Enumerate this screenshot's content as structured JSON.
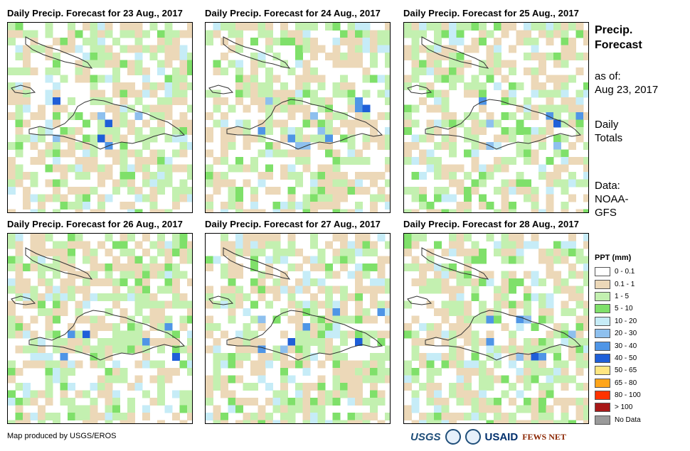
{
  "panels": [
    {
      "title": "Daily Precip. Forecast for 23 Aug., 2017",
      "seed": 11
    },
    {
      "title": "Daily Precip. Forecast for 24 Aug., 2017",
      "seed": 23
    },
    {
      "title": "Daily Precip. Forecast for 25 Aug., 2017",
      "seed": 37
    },
    {
      "title": "Daily Precip. Forecast for 26 Aug., 2017",
      "seed": 41
    },
    {
      "title": "Daily Precip. Forecast for 27 Aug., 2017",
      "seed": 53
    },
    {
      "title": "Daily Precip. Forecast for 28 Aug., 2017",
      "seed": 67
    }
  ],
  "sidebar": {
    "title_line1": "Precip.",
    "title_line2": "Forecast",
    "asof_label": "as of:",
    "asof_date": "Aug 23, 2017",
    "daily_line1": "Daily",
    "daily_line2": "Totals",
    "data_line1": "Data:",
    "data_line2": "NOAA-",
    "data_line3": "GFS"
  },
  "legend": {
    "title": "PPT (mm)",
    "items": [
      {
        "label": "0 - 0.1",
        "color": "#ffffff"
      },
      {
        "label": "0.1 - 1",
        "color": "#ecd8b8"
      },
      {
        "label": "1 - 5",
        "color": "#c3f0b0"
      },
      {
        "label": "5 - 10",
        "color": "#7fe06a"
      },
      {
        "label": "10 - 20",
        "color": "#c6ecf7"
      },
      {
        "label": "20 - 30",
        "color": "#8ec0ee"
      },
      {
        "label": "30 - 40",
        "color": "#4f95e6"
      },
      {
        "label": "40 - 50",
        "color": "#1f5fd8"
      },
      {
        "label": "50 - 65",
        "color": "#ffe680"
      },
      {
        "label": "65 - 80",
        "color": "#ffa51a"
      },
      {
        "label": "80 - 100",
        "color": "#ff3300"
      },
      {
        "label": "> 100",
        "color": "#a81818"
      },
      {
        "label": "No Data",
        "color": "#9a9a9a"
      }
    ]
  },
  "credit": "Map produced by USGS/EROS",
  "logos": {
    "usgs": "USGS",
    "usaid": "USAID",
    "fews": "FEWS NET"
  }
}
